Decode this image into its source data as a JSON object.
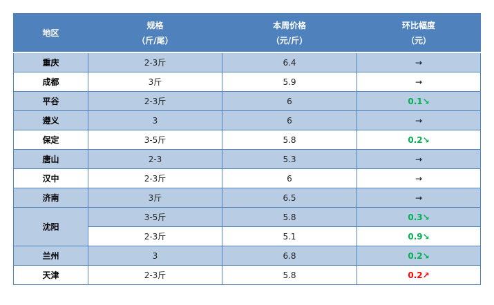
{
  "headers": [
    {
      "line1": "地区",
      "line2": ""
    },
    {
      "line1": "规格",
      "line2": "（斤/尾）"
    },
    {
      "line1": "本周价格",
      "line2": "（元/斤）"
    },
    {
      "line1": "环比幅度",
      "line2": "（元）"
    }
  ],
  "colors": {
    "header": "#4f81bd",
    "band": "#b8cce4",
    "down": "#00b050",
    "up": "#ff0000"
  },
  "rows": [
    {
      "region": "重庆",
      "spec": "2-3斤",
      "price": "6.4",
      "change": "→",
      "trend": "flat",
      "band": "blue"
    },
    {
      "region": "成都",
      "spec": "3斤",
      "price": "5.9",
      "change": "→",
      "trend": "flat",
      "band": "white"
    },
    {
      "region": "平谷",
      "spec": "2-3斤",
      "price": "6",
      "change": "0.1↘",
      "trend": "down",
      "band": "blue"
    },
    {
      "region": "遵义",
      "spec": "3",
      "price": "6",
      "change": "→",
      "trend": "flat",
      "band": "blue"
    },
    {
      "region": "保定",
      "spec": "3-5斤",
      "price": "5.8",
      "change": "0.2↘",
      "trend": "down",
      "band": "white"
    },
    {
      "region": "唐山",
      "spec": "2-3",
      "price": "5.3",
      "change": "→",
      "trend": "flat",
      "band": "blue"
    },
    {
      "region": "汉中",
      "spec": "2-3斤",
      "price": "6",
      "change": "→",
      "trend": "flat",
      "band": "white"
    },
    {
      "region": "济南",
      "spec": "3斤",
      "price": "6.5",
      "change": "→",
      "trend": "flat",
      "band": "blue"
    },
    {
      "region": "沈阳",
      "rowspan": 2,
      "regionBand": "blue",
      "spec": "3-5斤",
      "price": "5.8",
      "change": "0.3↘",
      "trend": "down",
      "band": "blue"
    },
    {
      "spec": "2-3斤",
      "price": "5.1",
      "change": "0.9↘",
      "trend": "down",
      "band": "white"
    },
    {
      "region": "兰州",
      "spec": "3",
      "price": "6.8",
      "change": "0.2↘",
      "trend": "down",
      "band": "blue"
    },
    {
      "region": "天津",
      "spec": "2-3斤",
      "price": "5.8",
      "change": "0.2↗",
      "trend": "up",
      "band": "white"
    }
  ]
}
